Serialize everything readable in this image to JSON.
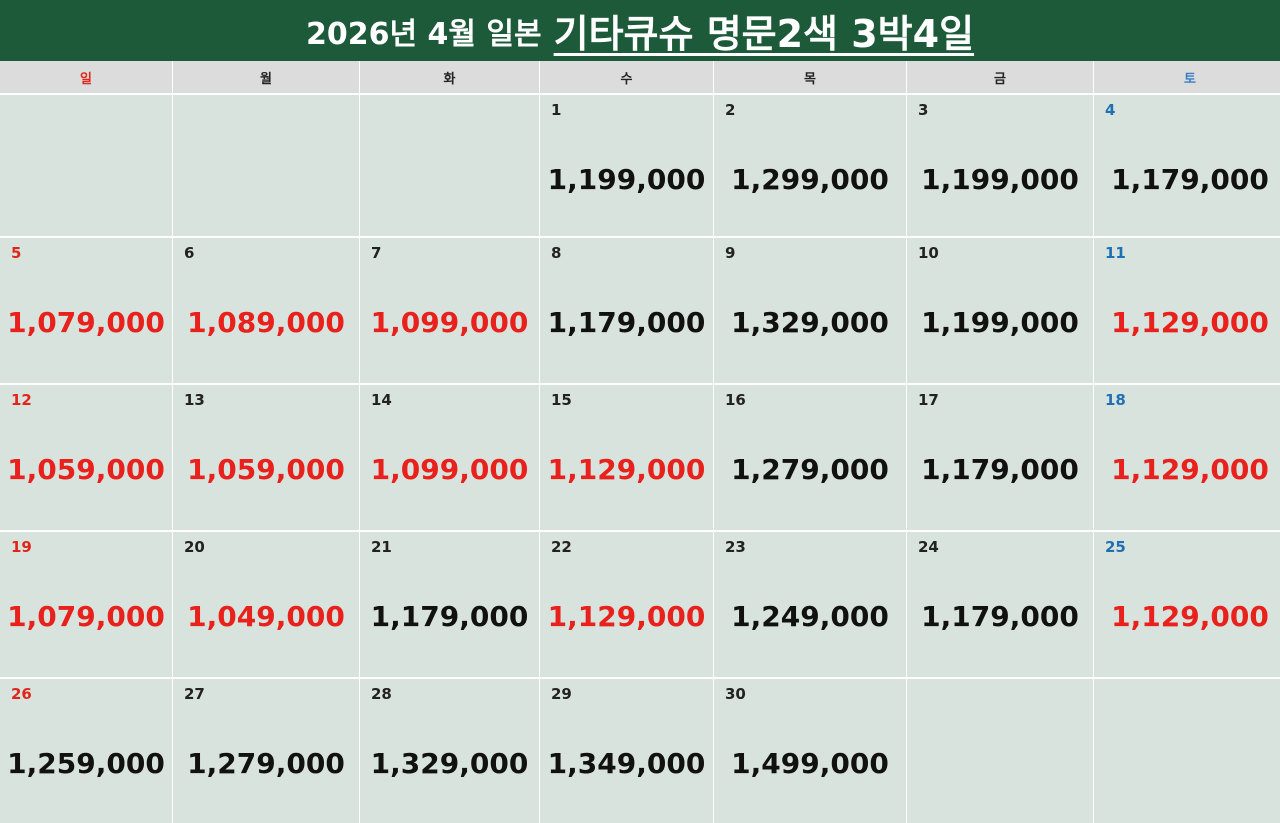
{
  "title": {
    "prefix": "2026년 4월 일본",
    "main": "기타큐슈 명문2색 3박4일"
  },
  "weekdays": [
    "일",
    "월",
    "화",
    "수",
    "목",
    "금",
    "토"
  ],
  "weeks": [
    [
      {
        "day": "",
        "price": "",
        "red": false
      },
      {
        "day": "",
        "price": "",
        "red": false
      },
      {
        "day": "",
        "price": "",
        "red": false
      },
      {
        "day": "1",
        "price": "1,199,000",
        "red": false
      },
      {
        "day": "2",
        "price": "1,299,000",
        "red": false
      },
      {
        "day": "3",
        "price": "1,199,000",
        "red": false
      },
      {
        "day": "4",
        "price": "1,179,000",
        "red": false
      }
    ],
    [
      {
        "day": "5",
        "price": "1,079,000",
        "red": true
      },
      {
        "day": "6",
        "price": "1,089,000",
        "red": true
      },
      {
        "day": "7",
        "price": "1,099,000",
        "red": true
      },
      {
        "day": "8",
        "price": "1,179,000",
        "red": false
      },
      {
        "day": "9",
        "price": "1,329,000",
        "red": false
      },
      {
        "day": "10",
        "price": "1,199,000",
        "red": false
      },
      {
        "day": "11",
        "price": "1,129,000",
        "red": true
      }
    ],
    [
      {
        "day": "12",
        "price": "1,059,000",
        "red": true
      },
      {
        "day": "13",
        "price": "1,059,000",
        "red": true
      },
      {
        "day": "14",
        "price": "1,099,000",
        "red": true
      },
      {
        "day": "15",
        "price": "1,129,000",
        "red": true
      },
      {
        "day": "16",
        "price": "1,279,000",
        "red": false
      },
      {
        "day": "17",
        "price": "1,179,000",
        "red": false
      },
      {
        "day": "18",
        "price": "1,129,000",
        "red": true
      }
    ],
    [
      {
        "day": "19",
        "price": "1,079,000",
        "red": true
      },
      {
        "day": "20",
        "price": "1,049,000",
        "red": true
      },
      {
        "day": "21",
        "price": "1,179,000",
        "red": false
      },
      {
        "day": "22",
        "price": "1,129,000",
        "red": true
      },
      {
        "day": "23",
        "price": "1,249,000",
        "red": false
      },
      {
        "day": "24",
        "price": "1,179,000",
        "red": false
      },
      {
        "day": "25",
        "price": "1,129,000",
        "red": true
      }
    ],
    [
      {
        "day": "26",
        "price": "1,259,000",
        "red": false
      },
      {
        "day": "27",
        "price": "1,279,000",
        "red": false
      },
      {
        "day": "28",
        "price": "1,329,000",
        "red": false
      },
      {
        "day": "29",
        "price": "1,349,000",
        "red": false
      },
      {
        "day": "30",
        "price": "1,499,000",
        "red": false
      },
      {
        "day": "",
        "price": "",
        "red": false
      },
      {
        "day": "",
        "price": "",
        "red": false
      }
    ]
  ],
  "colors": {
    "header_bg": "#1d5a3a",
    "cell_bg": "#d9e3dd",
    "weekday_bg": "#dcdcdc",
    "sale_price": "#e8211d",
    "sunday": "#e0261b",
    "saturday": "#1f6fb3"
  }
}
